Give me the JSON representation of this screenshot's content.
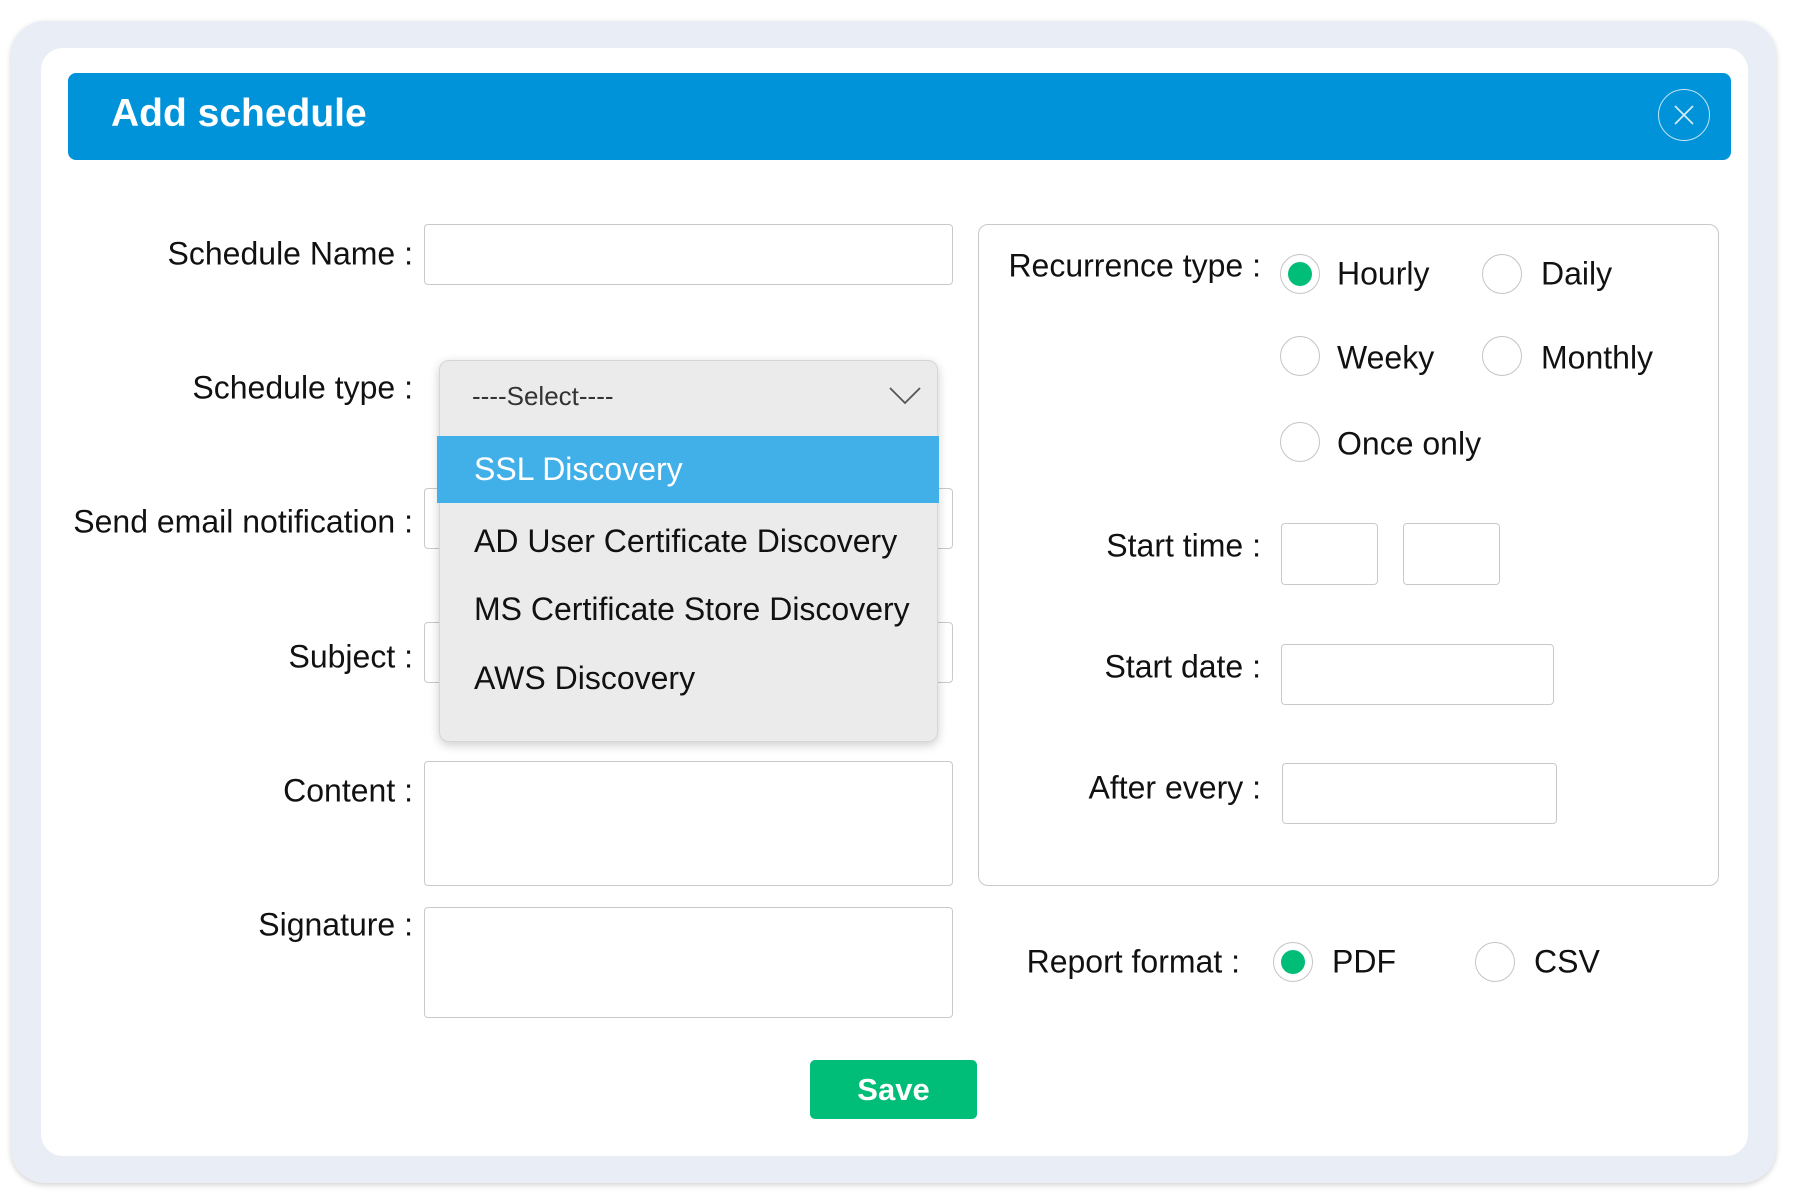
{
  "dialog": {
    "title": "Add schedule",
    "close_icon": "close-icon"
  },
  "form": {
    "schedule_name_label": "Schedule Name :",
    "schedule_name_value": "",
    "schedule_type_label": "Schedule type :",
    "send_email_label": "Send email notification :",
    "subject_label": "Subject :",
    "content_label": "Content :",
    "signature_label": "Signature :"
  },
  "dropdown": {
    "placeholder": "----Select----",
    "options": [
      {
        "label": "SSL Discovery",
        "highlighted": true
      },
      {
        "label": "AD User Certificate Discovery",
        "highlighted": false
      },
      {
        "label": "MS Certificate Store Discovery",
        "highlighted": false
      },
      {
        "label": "AWS Discovery",
        "highlighted": false
      }
    ]
  },
  "recurrence": {
    "label": "Recurrence type :",
    "options": [
      {
        "label": "Hourly",
        "selected": true
      },
      {
        "label": "Daily",
        "selected": false
      },
      {
        "label": "Weeky",
        "selected": false
      },
      {
        "label": "Monthly",
        "selected": false
      },
      {
        "label": "Once only",
        "selected": false
      }
    ],
    "start_time_label": "Start time :",
    "start_date_label": "Start date :",
    "after_every_label": "After every :"
  },
  "report_format": {
    "label": "Report format :",
    "options": [
      {
        "label": "PDF",
        "selected": true
      },
      {
        "label": "CSV",
        "selected": false
      }
    ]
  },
  "save_label": "Save",
  "colors": {
    "header": "#0093d9",
    "highlight": "#42b0e8",
    "accent_green": "#00bd77"
  }
}
